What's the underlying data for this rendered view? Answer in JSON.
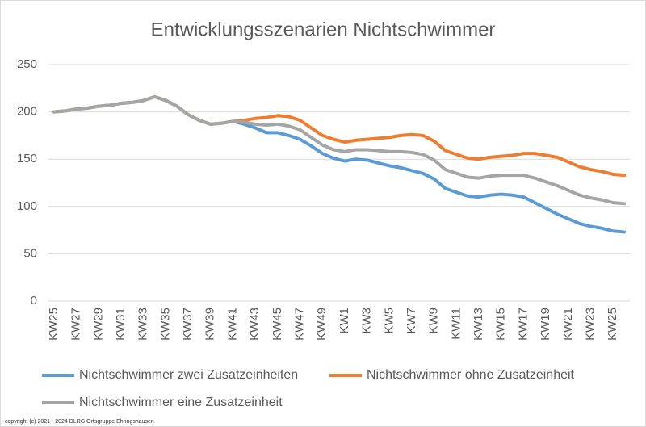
{
  "chart_data": {
    "type": "line",
    "title": "Entwicklungsszenarien Nichtschwimmer",
    "footer": "copyright (c) 2021 - 2024 DLRG Ortsgruppe Ehringshausen",
    "categories": [
      "KW25",
      null,
      "KW27",
      null,
      "KW29",
      null,
      "KW31",
      null,
      "KW33",
      null,
      "KW35",
      null,
      "KW37",
      null,
      "KW39",
      null,
      "KW41",
      null,
      "KW43",
      null,
      "KW45",
      null,
      "KW47",
      null,
      "KW49",
      null,
      "KW1",
      null,
      "KW3",
      null,
      "KW5",
      null,
      "KW7",
      null,
      "KW9",
      null,
      "KW11",
      null,
      "KW13",
      null,
      "KW15",
      null,
      "KW17",
      null,
      "KW19",
      null,
      "KW21",
      null,
      "KW23",
      null,
      "KW25",
      null
    ],
    "ylim": [
      0,
      250
    ],
    "yticks": [
      0,
      50,
      100,
      150,
      200,
      250
    ],
    "grid": true,
    "legend": "bottom",
    "series": [
      {
        "name": "Nichtschwimmer zwei Zusatzeinheiten",
        "color": "#5b9bd5",
        "values": [
          200,
          201,
          203,
          204,
          206,
          207,
          209,
          210,
          212,
          216,
          212,
          206,
          197,
          191,
          187,
          188,
          190,
          187,
          183,
          178,
          178,
          175,
          171,
          164,
          156,
          151,
          148,
          150,
          149,
          146,
          143,
          141,
          138,
          135,
          129,
          119,
          115,
          111,
          110,
          112,
          113,
          112,
          110,
          104,
          98,
          92,
          87,
          82,
          79,
          77,
          74,
          73
        ]
      },
      {
        "name": "Nichtschwimmer ohne Zusatzeinheit",
        "color": "#ed7d31",
        "values": [
          200,
          201,
          203,
          204,
          206,
          207,
          209,
          210,
          212,
          216,
          212,
          206,
          197,
          191,
          187,
          188,
          190,
          191,
          193,
          194,
          196,
          195,
          191,
          183,
          175,
          171,
          168,
          170,
          171,
          172,
          173,
          175,
          176,
          175,
          169,
          159,
          155,
          151,
          150,
          152,
          153,
          154,
          156,
          156,
          154,
          152,
          147,
          142,
          139,
          137,
          134,
          133
        ]
      },
      {
        "name": "Nichtschwimmer eine Zusatzeinheit",
        "color": "#a5a5a5",
        "values": [
          200,
          201,
          203,
          204,
          206,
          207,
          209,
          210,
          212,
          216,
          212,
          206,
          197,
          191,
          187,
          188,
          190,
          189,
          187,
          186,
          187,
          185,
          181,
          173,
          165,
          160,
          158,
          160,
          160,
          159,
          158,
          158,
          157,
          155,
          149,
          139,
          135,
          131,
          130,
          132,
          133,
          133,
          133,
          130,
          126,
          122,
          117,
          112,
          109,
          107,
          104,
          103
        ]
      }
    ]
  }
}
